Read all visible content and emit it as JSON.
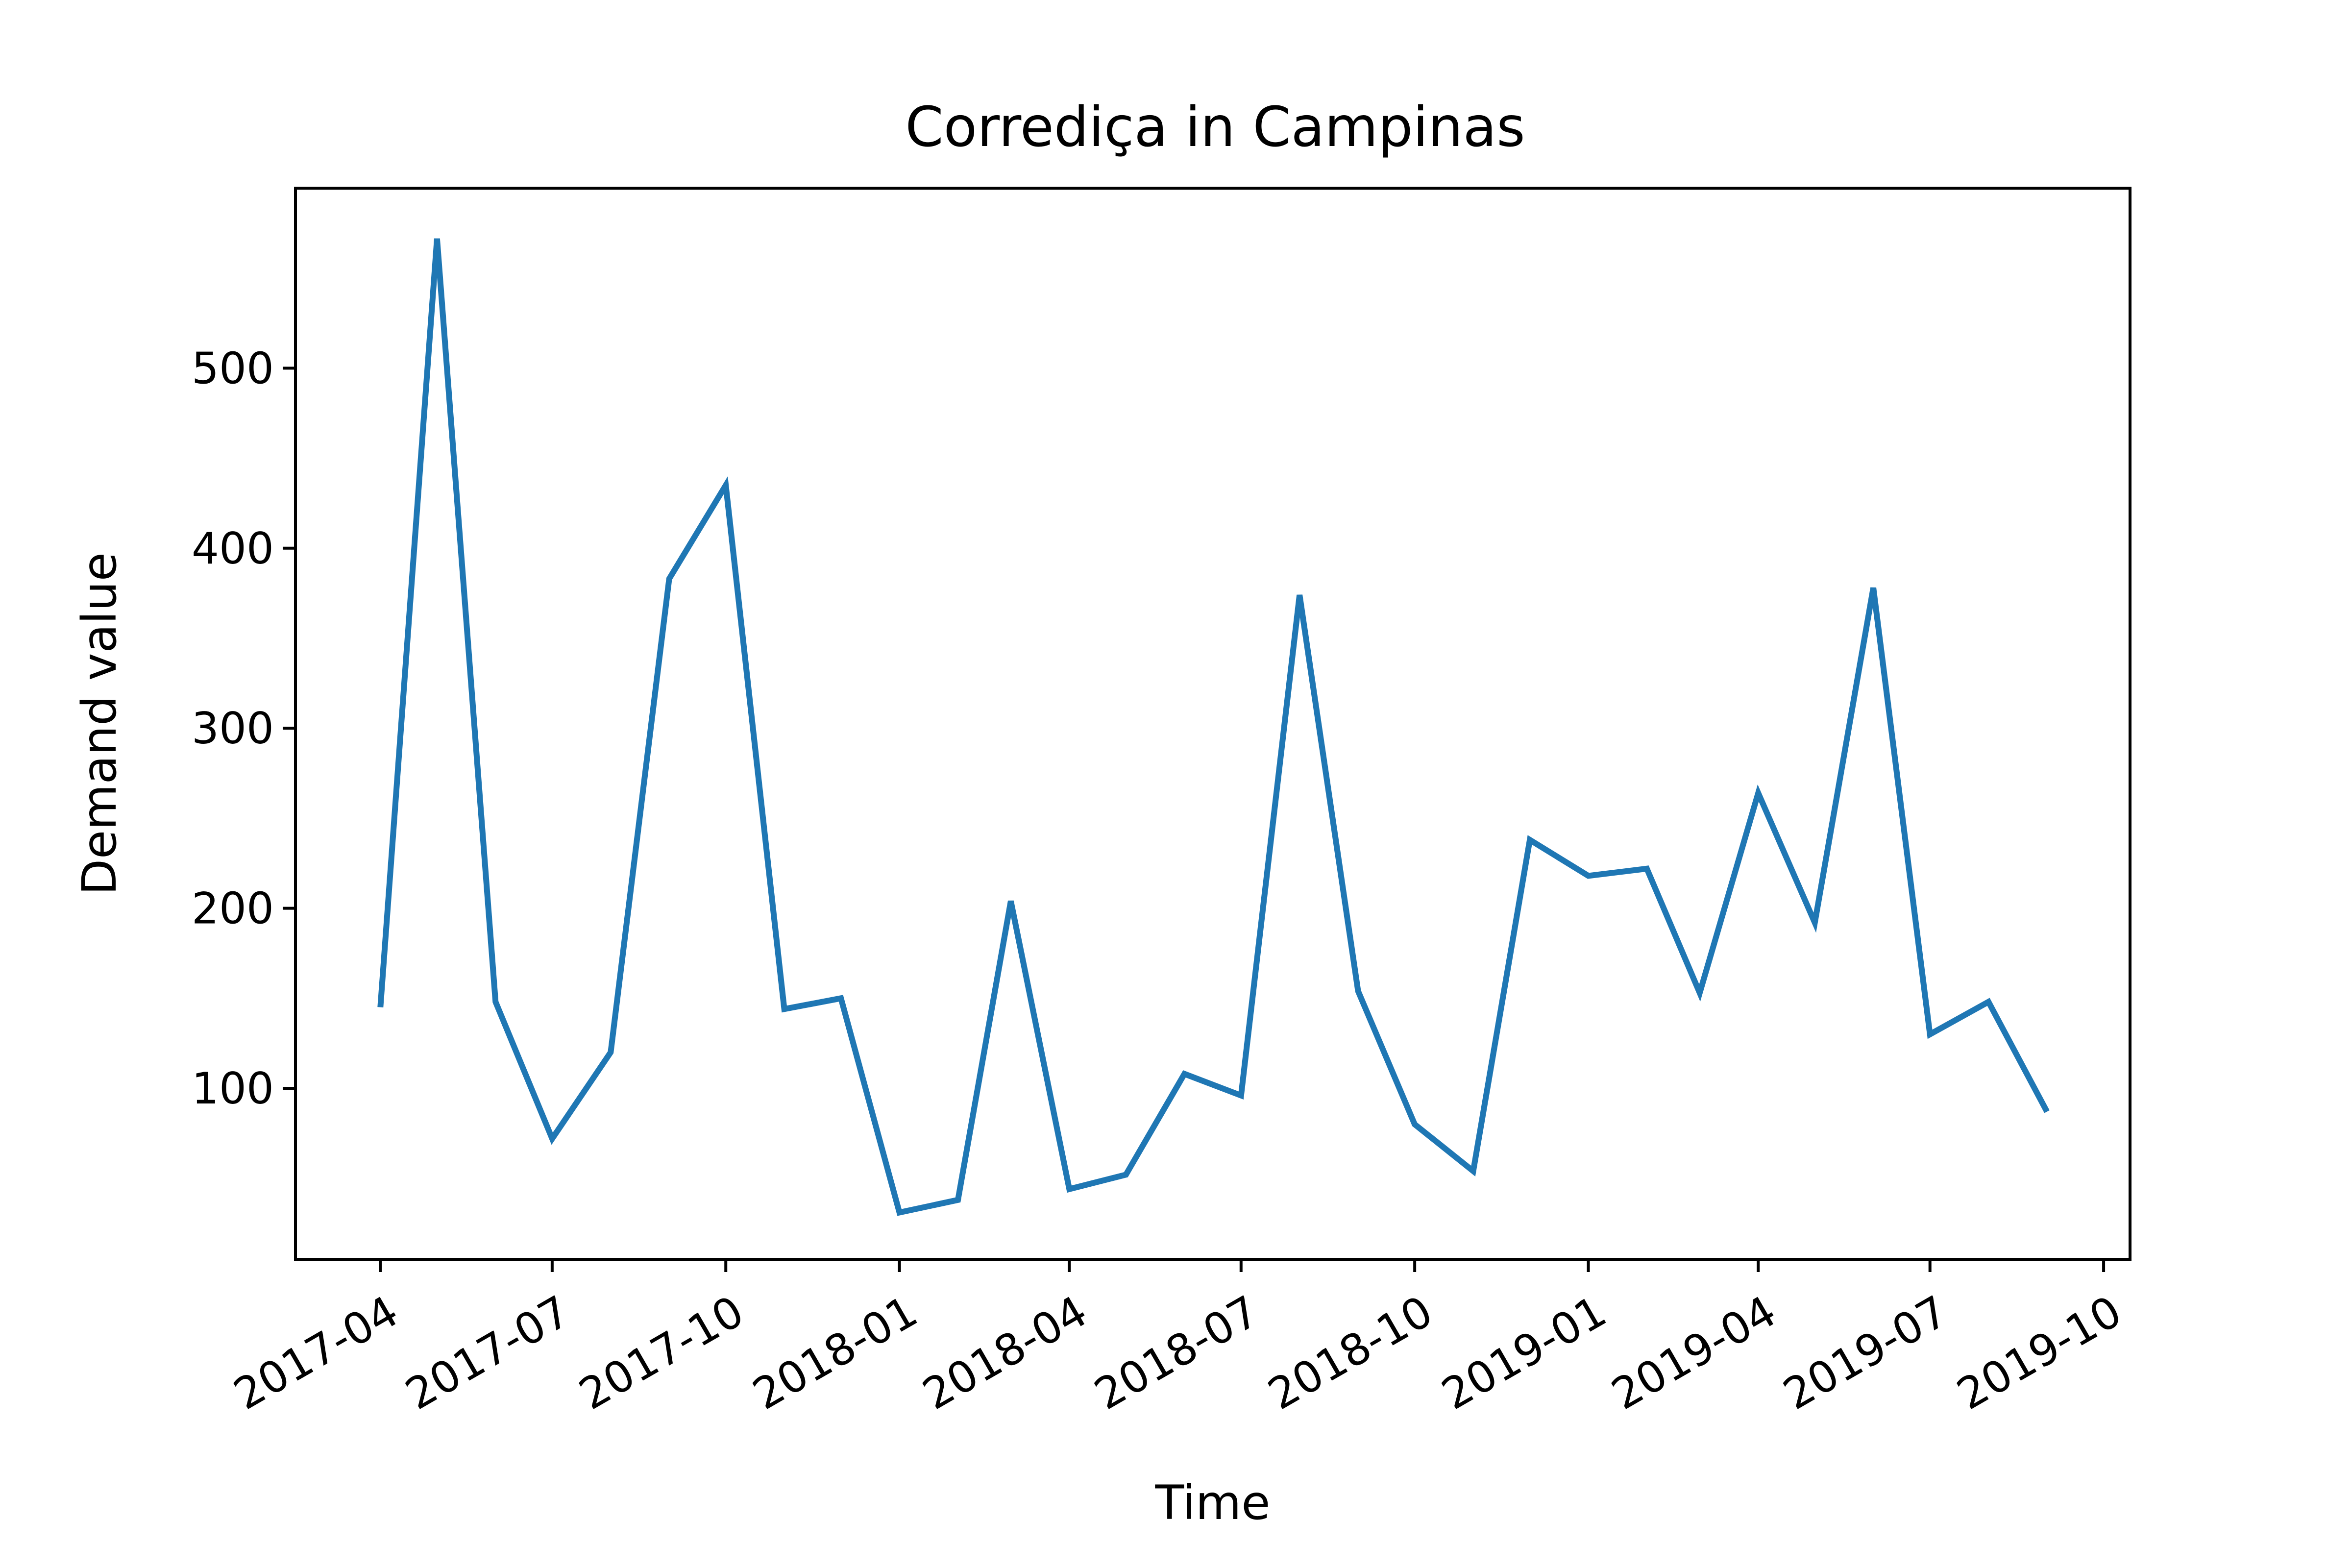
{
  "chart_data": {
    "type": "line",
    "title": "Corrediça in Campinas",
    "xlabel": "Time",
    "ylabel": "Demand value",
    "series_color": "#1f77b4",
    "grid": false,
    "legend": "none",
    "x_ticks": [
      "2017-04",
      "2017-07",
      "2017-10",
      "2018-01",
      "2018-04",
      "2018-07",
      "2018-10",
      "2019-01",
      "2019-04",
      "2019-07",
      "2019-10"
    ],
    "y_ticks": [
      100,
      200,
      300,
      400,
      500
    ],
    "xlim": [
      "2017-02-15",
      "2019-10-15"
    ],
    "ylim": [
      5,
      600
    ],
    "series": [
      {
        "x": [
          "2017-04-01",
          "2017-05-01",
          "2017-06-01",
          "2017-07-01",
          "2017-08-01",
          "2017-09-01",
          "2017-10-01",
          "2017-11-01",
          "2017-12-01",
          "2018-01-01",
          "2018-02-01",
          "2018-03-01",
          "2018-04-01",
          "2018-05-01",
          "2018-06-01",
          "2018-07-01",
          "2018-08-01",
          "2018-09-01",
          "2018-10-01",
          "2018-11-01",
          "2018-12-01",
          "2019-01-01",
          "2019-02-01",
          "2019-03-01",
          "2019-04-01",
          "2019-05-01",
          "2019-06-01",
          "2019-07-01",
          "2019-08-01",
          "2019-09-01"
        ],
        "values": [
          145,
          572,
          148,
          72,
          120,
          383,
          435,
          144,
          150,
          31,
          38,
          204,
          44,
          52,
          108,
          96,
          374,
          154,
          80,
          54,
          238,
          218,
          222,
          153,
          264,
          192,
          378,
          130,
          148,
          87
        ]
      }
    ]
  }
}
